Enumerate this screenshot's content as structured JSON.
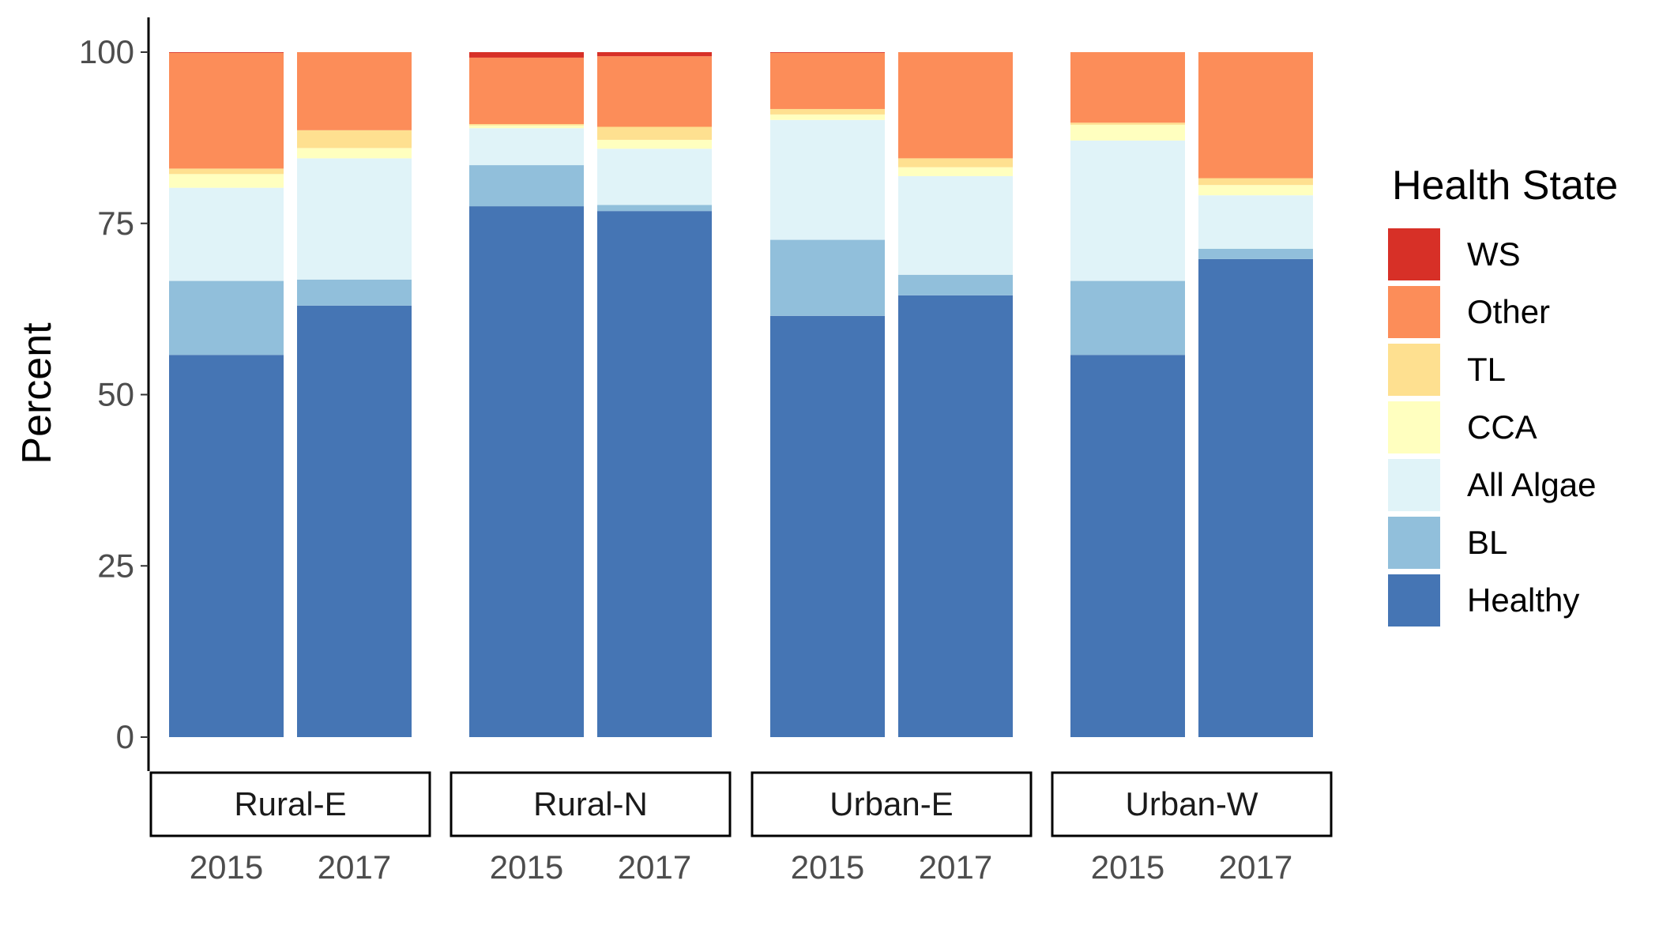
{
  "chart_data": {
    "type": "bar",
    "stacked": true,
    "ylabel": "Percent",
    "ylim": [
      0,
      100
    ],
    "yticks": [
      0,
      25,
      50,
      75,
      100
    ],
    "grid": false,
    "legend": {
      "title": "Health State",
      "position": "right"
    },
    "facets": [
      "Rural-E",
      "Rural-N",
      "Urban-E",
      "Urban-W"
    ],
    "categories": [
      "2015",
      "2017"
    ],
    "stack_order": [
      "Healthy",
      "BL",
      "All Algae",
      "CCA",
      "TL",
      "Other",
      "WS"
    ],
    "legend_order": [
      "WS",
      "Other",
      "TL",
      "CCA",
      "All Algae",
      "BL",
      "Healthy"
    ],
    "colors": {
      "WS": "#d73027",
      "Other": "#fc8d59",
      "TL": "#fee090",
      "CCA": "#ffffbf",
      "All Algae": "#e0f3f8",
      "BL": "#91bfdb",
      "Healthy": "#4575b4"
    },
    "bars": [
      {
        "facet": "Rural-E",
        "year": "2015",
        "values": {
          "Healthy": 55.8,
          "BL": 10.8,
          "All Algae": 13.6,
          "CCA": 2.0,
          "TL": 0.8,
          "Other": 16.9,
          "WS": 0.1
        }
      },
      {
        "facet": "Rural-E",
        "year": "2017",
        "values": {
          "Healthy": 63.0,
          "BL": 3.8,
          "All Algae": 17.7,
          "CCA": 1.5,
          "TL": 2.6,
          "Other": 11.4,
          "WS": 0
        }
      },
      {
        "facet": "Rural-N",
        "year": "2015",
        "values": {
          "Healthy": 77.5,
          "BL": 6.0,
          "All Algae": 5.4,
          "CCA": 0.4,
          "TL": 0.2,
          "Other": 9.7,
          "WS": 0.8
        }
      },
      {
        "facet": "Rural-N",
        "year": "2017",
        "values": {
          "Healthy": 76.8,
          "BL": 0.9,
          "All Algae": 8.2,
          "CCA": 1.3,
          "TL": 1.9,
          "Other": 10.3,
          "WS": 0.6
        }
      },
      {
        "facet": "Urban-E",
        "year": "2015",
        "values": {
          "Healthy": 61.5,
          "BL": 11.1,
          "All Algae": 17.5,
          "CCA": 0.8,
          "TL": 0.8,
          "Other": 8.2,
          "WS": 0.1
        }
      },
      {
        "facet": "Urban-E",
        "year": "2017",
        "values": {
          "Healthy": 64.5,
          "BL": 3.0,
          "All Algae": 14.4,
          "CCA": 1.3,
          "TL": 1.3,
          "Other": 15.5,
          "WS": 0
        }
      },
      {
        "facet": "Urban-W",
        "year": "2015",
        "values": {
          "Healthy": 55.8,
          "BL": 10.8,
          "All Algae": 20.5,
          "CCA": 2.3,
          "TL": 0.3,
          "Other": 10.3,
          "WS": 0
        }
      },
      {
        "facet": "Urban-W",
        "year": "2017",
        "values": {
          "Healthy": 69.8,
          "BL": 1.5,
          "All Algae": 7.8,
          "CCA": 1.5,
          "TL": 1.0,
          "Other": 18.4,
          "WS": 0
        }
      }
    ]
  }
}
